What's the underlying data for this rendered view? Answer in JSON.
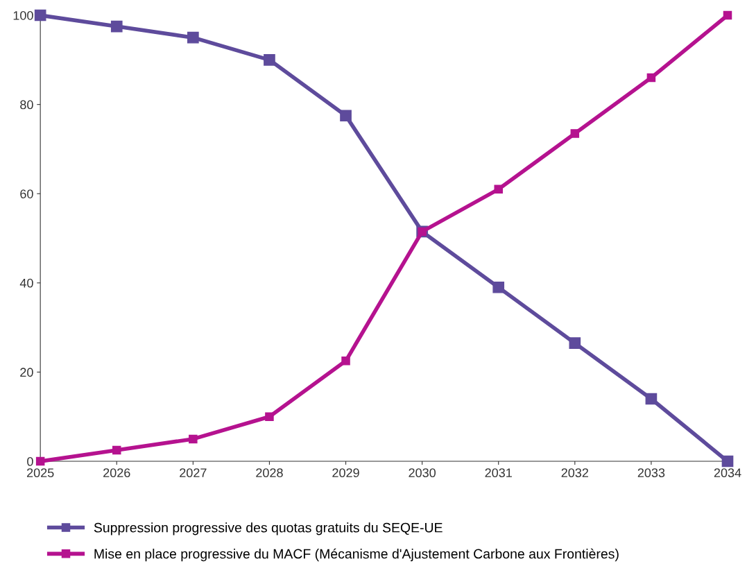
{
  "chart_data": {
    "type": "line",
    "x": [
      2025,
      2026,
      2027,
      2028,
      2029,
      2030,
      2031,
      2032,
      2033,
      2034
    ],
    "series": [
      {
        "name": "Suppression progressive des quotas gratuits du SEQE-UE",
        "color": "#5e4b9c",
        "values": [
          100,
          97.5,
          95,
          90,
          77.5,
          51.5,
          39,
          26.5,
          14,
          0
        ]
      },
      {
        "name": "Mise en place progressive du MACF (Mécanisme d'Ajustement Carbone aux Frontières)",
        "color": "#b5128f",
        "values": [
          0,
          2.5,
          5,
          10,
          22.5,
          51.5,
          61,
          73.5,
          86,
          100
        ]
      }
    ],
    "xlim": [
      2025,
      2034
    ],
    "xticks": [
      2025,
      2026,
      2027,
      2028,
      2029,
      2030,
      2031,
      2032,
      2033,
      2034
    ],
    "ylim": [
      0,
      100
    ],
    "yticks": [
      0,
      20,
      40,
      60,
      80,
      100
    ],
    "marker": "square",
    "line_style": "solid",
    "legend": "bottom",
    "grid": false
  }
}
